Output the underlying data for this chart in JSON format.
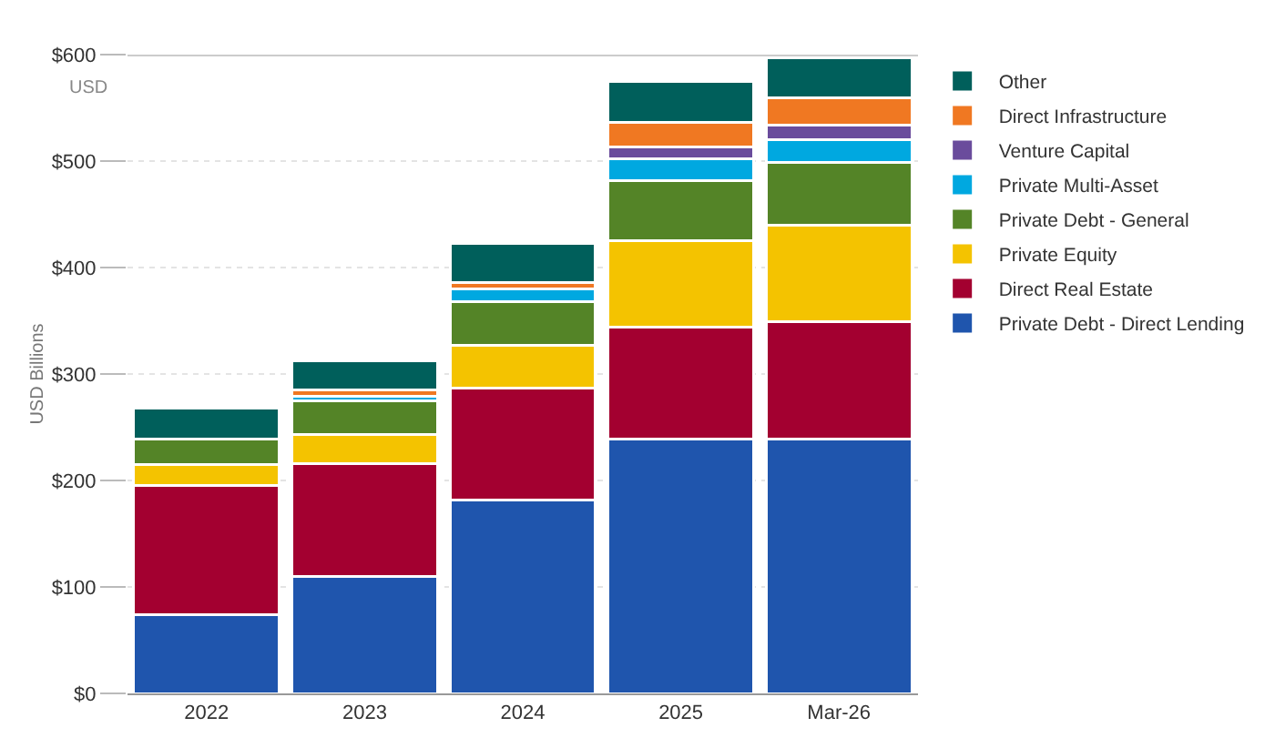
{
  "chart_data": {
    "type": "bar",
    "stacked": true,
    "ylabel": "USD Billions",
    "annotations": [
      "USD"
    ],
    "categories": [
      "2022",
      "2023",
      "2024",
      "2025",
      "Mar-26"
    ],
    "series": [
      {
        "name": "Private Debt - Direct Lending",
        "color": "#1f55ad",
        "values": [
          74,
          110,
          182,
          239,
          239
        ]
      },
      {
        "name": "Direct Real Estate",
        "color": "#a30030",
        "values": [
          121,
          106,
          105,
          105,
          110
        ]
      },
      {
        "name": "Private Equity",
        "color": "#f4c300",
        "values": [
          20,
          27,
          40,
          81,
          91
        ]
      },
      {
        "name": "Private Debt - General",
        "color": "#548427",
        "values": [
          24,
          32,
          41,
          57,
          59
        ]
      },
      {
        "name": "Private Multi-Asset",
        "color": "#00a8e0",
        "values": [
          null,
          4,
          12,
          20,
          21
        ]
      },
      {
        "name": "Venture Capital",
        "color": "#6a4c9c",
        "values": [
          null,
          null,
          null,
          11,
          14
        ]
      },
      {
        "name": "Direct Infrastructure",
        "color": "#f07822",
        "values": [
          null,
          6,
          6,
          23,
          25
        ]
      },
      {
        "name": "Other",
        "color": "#005f5b",
        "values": [
          29,
          27,
          37,
          39,
          38
        ]
      }
    ],
    "ylim": [
      0,
      600
    ],
    "yticks": [
      {
        "value": 0,
        "label": "$0"
      },
      {
        "value": 100,
        "label": "$100"
      },
      {
        "value": 200,
        "label": "$200"
      },
      {
        "value": 300,
        "label": "$300"
      },
      {
        "value": 400,
        "label": "$400"
      },
      {
        "value": 500,
        "label": "$500"
      },
      {
        "value": 600,
        "label": "$600"
      }
    ],
    "grid": "y",
    "legend": "right"
  }
}
